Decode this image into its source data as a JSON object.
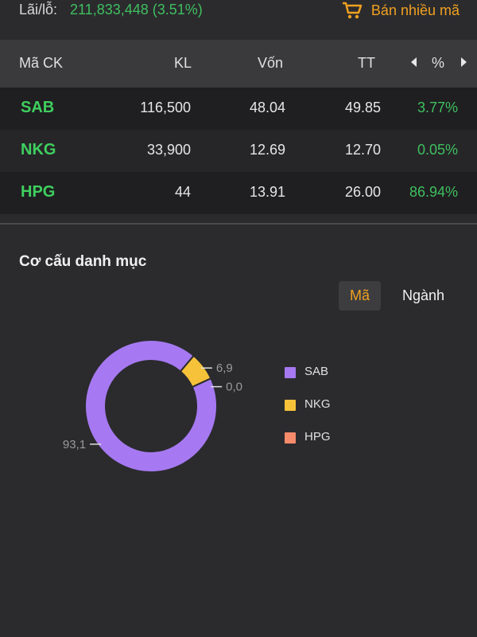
{
  "header": {
    "pnl_label": "Lãi/lỗ:",
    "pnl_value": "211,833,448 (3.51%)",
    "sell_many_label": "Bán nhiều mã"
  },
  "table": {
    "columns": [
      "Mã CK",
      "KL",
      "Vốn",
      "TT",
      "%"
    ],
    "rows": [
      {
        "symbol": "SAB",
        "kl": "116,500",
        "von": "48.04",
        "tt": "49.85",
        "pct": "3.77%"
      },
      {
        "symbol": "NKG",
        "kl": "33,900",
        "von": "12.69",
        "tt": "12.70",
        "pct": "0.05%"
      },
      {
        "symbol": "HPG",
        "kl": "44",
        "von": "13.91",
        "tt": "26.00",
        "pct": "86.94%"
      }
    ]
  },
  "portfolio": {
    "title": "Cơ cấu danh mục",
    "tabs": [
      {
        "label": "Mã",
        "active": true
      },
      {
        "label": "Ngành",
        "active": false
      }
    ]
  },
  "chart_data": {
    "type": "pie",
    "categories": [
      "SAB",
      "NKG",
      "HPG"
    ],
    "values": [
      93.1,
      6.9,
      0.0
    ],
    "labels": [
      "93,1",
      "6,9",
      "0,0"
    ],
    "colors": [
      "#a679f2",
      "#f6c23a",
      "#f58b6b"
    ]
  }
}
